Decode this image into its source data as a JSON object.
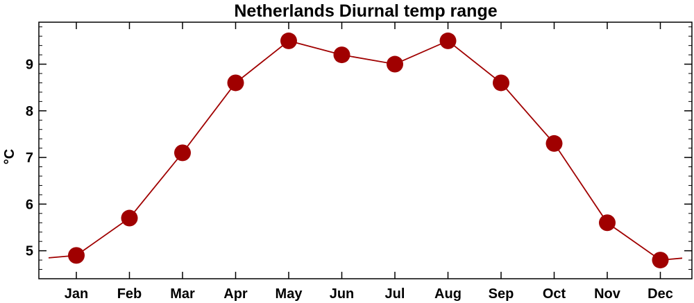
{
  "chart_data": {
    "type": "line",
    "title": "Netherlands Diurnal temp range",
    "xlabel": "",
    "ylabel": "°C",
    "categories": [
      "Jan",
      "Feb",
      "Mar",
      "Apr",
      "May",
      "Jun",
      "Jul",
      "Aug",
      "Sep",
      "Oct",
      "Nov",
      "Dec"
    ],
    "series": [
      {
        "values": [
          4.9,
          5.7,
          7.1,
          8.6,
          9.5,
          9.2,
          9.0,
          9.5,
          8.6,
          7.3,
          5.6,
          4.8
        ]
      }
    ],
    "yticks": [
      5,
      6,
      7,
      8,
      9
    ],
    "ylim": [
      4.4,
      9.9
    ],
    "grid": false,
    "legend": "none",
    "colors": {
      "line": "#a00000",
      "marker": "#a00000",
      "axis": "#000000"
    }
  }
}
